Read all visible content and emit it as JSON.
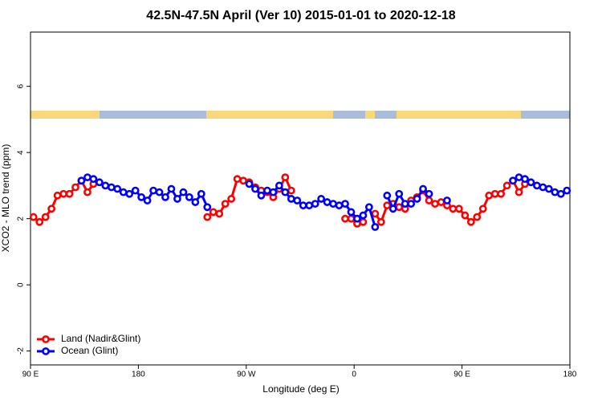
{
  "chart_data": {
    "type": "line",
    "title": "42.5N-47.5N April (Ver 10)   2015-01-01 to 2020-12-18",
    "xlabel": "Longitude (deg E)",
    "ylabel": "XCO2 - MLO trend (ppm)",
    "xlim": [
      90,
      540
    ],
    "ylim": [
      -2.42,
      7.64
    ],
    "xticks": [
      {
        "value": 90,
        "label": "90 E"
      },
      180,
      {
        "value": 270,
        "label": "90 W"
      },
      {
        "value": 360,
        "label": "0"
      },
      {
        "value": 450,
        "label": "90 E"
      },
      {
        "value": 540,
        "label": "180"
      }
    ],
    "yticks": [
      -2,
      0,
      2,
      4,
      6
    ],
    "legend": "bottomleft",
    "grid": false,
    "x": [
      92.5,
      97.5,
      102.5,
      107.5,
      112.5,
      117.5,
      122.5,
      127.5,
      132.5,
      137.5,
      142.5,
      147.5,
      152.5,
      157.5,
      162.5,
      167.5,
      172.5,
      177.5,
      182.5,
      187.5,
      192.5,
      197.5,
      202.5,
      207.5,
      212.5,
      217.5,
      222.5,
      227.5,
      232.5,
      237.5,
      242.5,
      247.5,
      252.5,
      257.5,
      262.5,
      267.5,
      272.5,
      277.5,
      282.5,
      287.5,
      292.5,
      297.5,
      302.5,
      307.5,
      312.5,
      317.5,
      322.5,
      327.5,
      332.5,
      337.5,
      342.5,
      347.5,
      352.5,
      357.5,
      362.5,
      367.5,
      372.5,
      377.5,
      382.5,
      387.5,
      392.5,
      397.5,
      402.5,
      407.5,
      412.5,
      417.5,
      422.5,
      427.5,
      432.5,
      437.5,
      442.5,
      447.5,
      452.5,
      457.5,
      462.5,
      467.5,
      472.5,
      477.5,
      482.5,
      487.5,
      492.5,
      497.5,
      502.5,
      507.5,
      512.5,
      517.5,
      522.5,
      527.5,
      532.5,
      537.5
    ],
    "series": [
      {
        "name": "Land (Nadir&Glint)",
        "color": "#ff0000",
        "values": [
          2.05,
          1.9,
          2.05,
          2.3,
          2.7,
          2.75,
          2.75,
          2.95,
          3.15,
          2.8,
          3.05,
          null,
          null,
          null,
          null,
          null,
          null,
          null,
          null,
          null,
          null,
          null,
          null,
          null,
          null,
          null,
          null,
          null,
          null,
          2.05,
          2.2,
          2.15,
          2.45,
          2.6,
          3.2,
          3.15,
          3.1,
          2.95,
          2.85,
          2.8,
          2.65,
          2.9,
          3.25,
          2.85,
          null,
          null,
          null,
          null,
          null,
          null,
          null,
          null,
          2.0,
          2.0,
          1.85,
          1.9,
          null,
          2.15,
          1.9,
          2.4,
          2.45,
          2.35,
          2.3,
          2.55,
          2.65,
          2.85,
          2.55,
          2.45,
          2.5,
          2.4,
          2.3,
          2.3,
          2.1,
          1.9,
          2.05,
          2.3,
          2.7,
          2.75,
          2.75,
          3.0,
          3.15,
          2.8,
          3.05,
          null,
          null,
          null,
          null,
          null,
          null,
          null
        ]
      },
      {
        "name": "Ocean (Glint)",
        "color": "#0000ff",
        "values": [
          null,
          null,
          null,
          null,
          null,
          null,
          null,
          null,
          3.15,
          3.25,
          3.2,
          3.1,
          3.0,
          2.95,
          2.9,
          2.8,
          2.75,
          2.85,
          2.65,
          2.55,
          2.85,
          2.8,
          2.65,
          2.9,
          2.6,
          2.8,
          2.65,
          2.5,
          2.75,
          2.35,
          null,
          null,
          null,
          null,
          null,
          null,
          3.05,
          2.9,
          2.7,
          2.85,
          2.8,
          3.0,
          2.8,
          2.6,
          2.55,
          2.4,
          2.4,
          2.45,
          2.6,
          2.5,
          2.45,
          2.4,
          2.45,
          2.2,
          2.0,
          2.1,
          2.35,
          1.75,
          null,
          2.7,
          2.3,
          2.75,
          2.45,
          2.45,
          2.6,
          2.9,
          2.75,
          null,
          null,
          2.55,
          null,
          null,
          null,
          null,
          null,
          null,
          null,
          null,
          null,
          null,
          3.15,
          3.25,
          3.2,
          3.1,
          3.0,
          2.95,
          2.9,
          2.8,
          2.75,
          2.85
        ]
      }
    ]
  }
}
